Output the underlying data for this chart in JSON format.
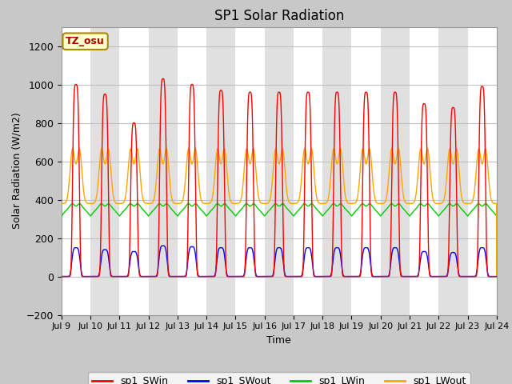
{
  "title": "SP1 Solar Radiation",
  "xlabel": "Time",
  "ylabel": "Solar Radiation (W/m2)",
  "ylim": [
    -200,
    1300
  ],
  "yticks": [
    -200,
    0,
    200,
    400,
    600,
    800,
    1000,
    1200
  ],
  "x_labels": [
    "Jul 9",
    "Jul 10",
    "Jul 11",
    "Jul 12",
    "Jul 13",
    "Jul 14",
    "Jul 15",
    "Jul 16",
    "Jul 17",
    "Jul 18",
    "Jul 19",
    "Jul 20",
    "Jul 21",
    "Jul 22",
    "Jul 23",
    "Jul 24"
  ],
  "legend_entries": [
    "sp1_SWin",
    "sp1_SWout",
    "sp1_LWin",
    "sp1_LWout"
  ],
  "legend_colors": [
    "#ff0000",
    "#0000ff",
    "#00cc00",
    "#ffa500"
  ],
  "annotation_text": "TZ_osu",
  "annotation_color": "#aa0000",
  "annotation_bg": "#ffffcc",
  "annotation_border": "#aa8800",
  "fig_bg": "#c8c8c8",
  "plot_bg": "#ffffff",
  "band_color": "#e0e0e0",
  "grid_color": "#c0c0c0",
  "n_days": 15,
  "points_per_day": 288,
  "SWin_peaks": [
    1000,
    950,
    800,
    1030,
    1000,
    970,
    960,
    960,
    960,
    960,
    960,
    960,
    900,
    880,
    990
  ],
  "SWout_peaks": [
    150,
    140,
    130,
    160,
    155,
    150,
    150,
    150,
    150,
    150,
    150,
    150,
    130,
    125,
    150
  ],
  "LWin_base": 315,
  "LWin_amplitude": 60,
  "LWout_base": 380,
  "LWout_peak": 660,
  "SWin_color": "#ff0000",
  "SWout_color": "#0000ff",
  "LWin_color": "#00cc00",
  "LWout_color": "#ffa500"
}
